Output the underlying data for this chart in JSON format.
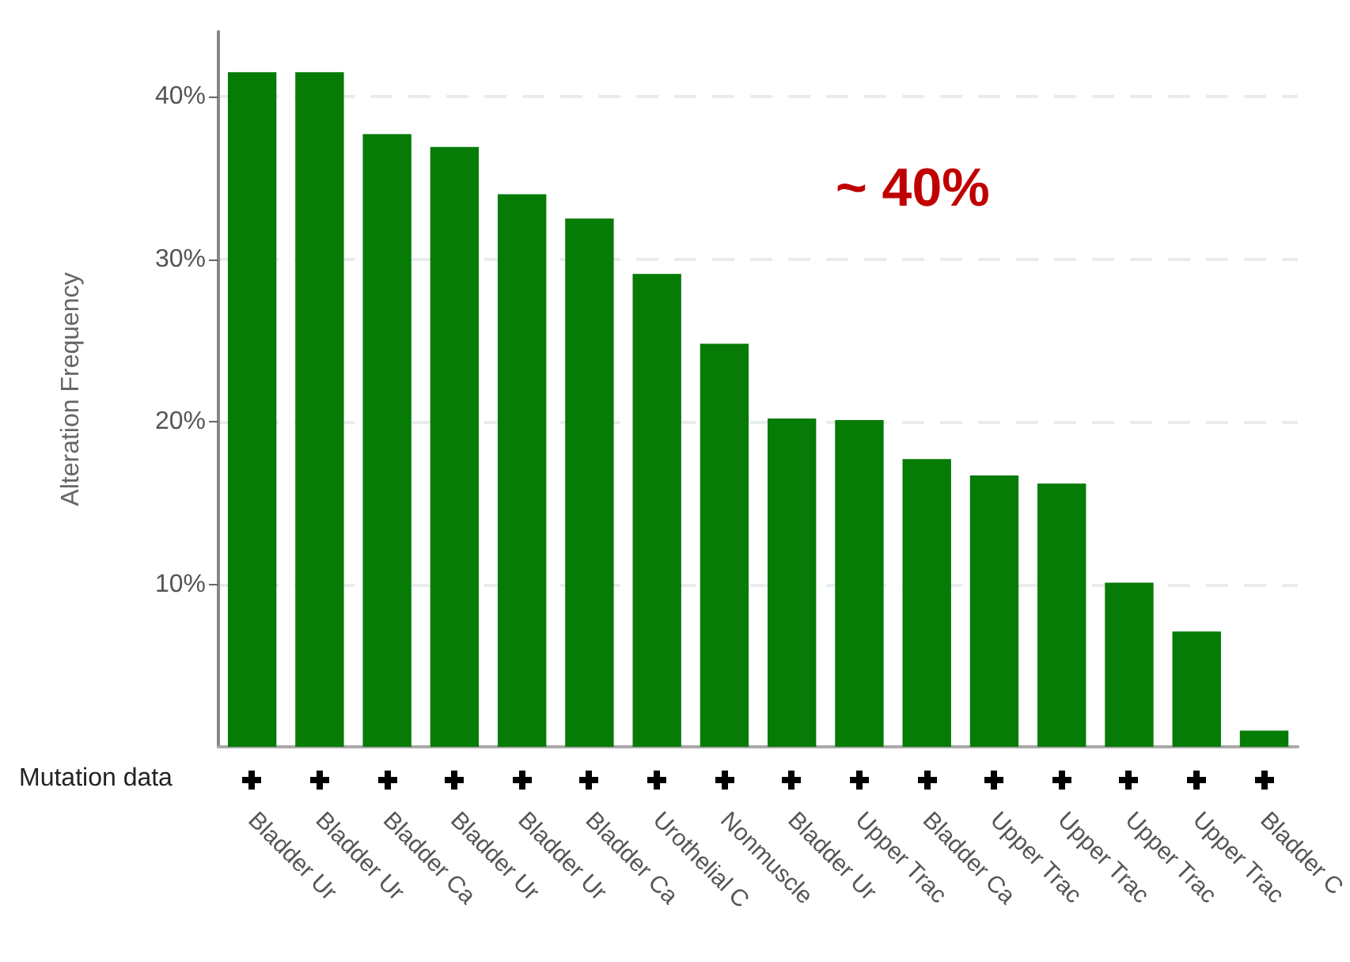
{
  "chart_data": {
    "type": "bar",
    "ylabel": "Alteration Frequency",
    "categories": [
      "Bladder Ur",
      "Bladder Ur",
      "Bladder Ca",
      "Bladder Ur",
      "Bladder Ur",
      "Bladder Ca",
      "Urothelial C",
      "Nonmuscle",
      "Bladder Ur",
      "Upper Trac",
      "Bladder Ca",
      "Upper Trac",
      "Upper Trac",
      "Upper Trac",
      "Upper Trac",
      "Bladder C"
    ],
    "values": [
      41.5,
      41.5,
      37.7,
      36.9,
      34.0,
      32.5,
      29.1,
      24.8,
      20.2,
      20.1,
      17.7,
      16.7,
      16.2,
      10.1,
      7.1,
      1.0
    ],
    "color": "#067b06",
    "ylim": [
      0,
      44
    ],
    "yticks": [
      {
        "value": 10,
        "label": "10%"
      },
      {
        "value": 20,
        "label": "20%"
      },
      {
        "value": 30,
        "label": "30%"
      },
      {
        "value": 40,
        "label": "40%"
      }
    ],
    "grid": "y",
    "annotations": [
      "~ 40%",
      "Mutation data"
    ]
  }
}
